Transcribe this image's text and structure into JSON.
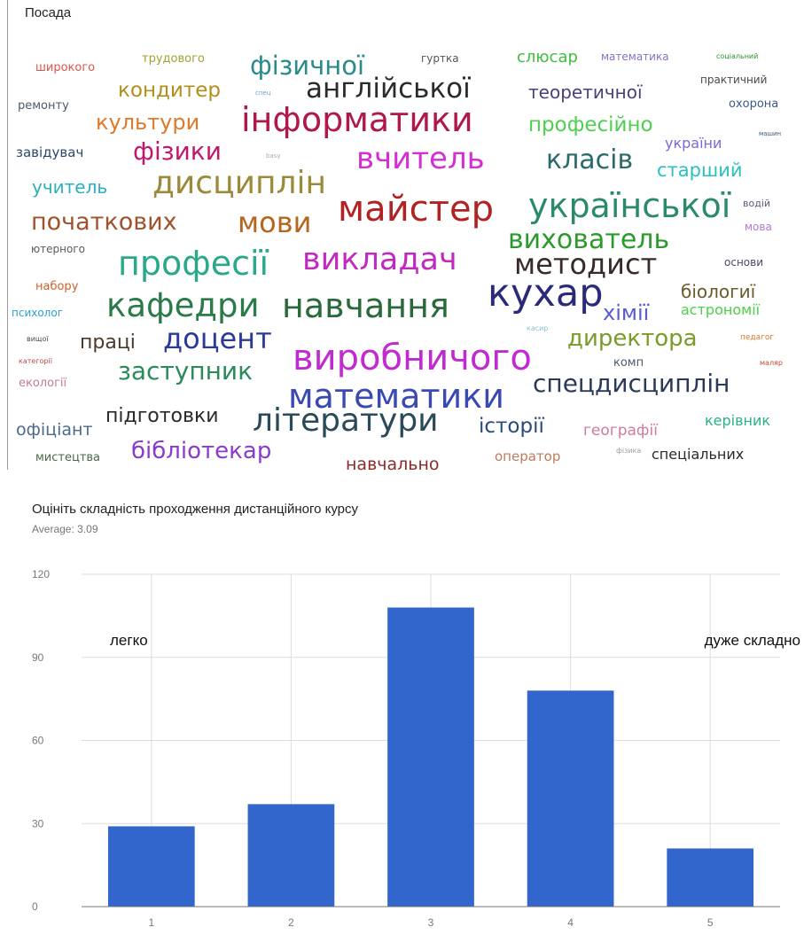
{
  "wordcloud": {
    "title": "Посада",
    "words": [
      {
        "text": "широкого",
        "color": "#d9564a"
      },
      {
        "text": "трудового",
        "color": "#a3a130"
      },
      {
        "text": "фізичної",
        "color": "#2b8a8a"
      },
      {
        "text": "гуртка",
        "color": "#555555"
      },
      {
        "text": "слюсар",
        "color": "#3fbf3f"
      },
      {
        "text": "математика",
        "color": "#8a6fc2"
      },
      {
        "text": "соціальний",
        "color": "#2f8f2f"
      },
      {
        "text": "кондитер",
        "color": "#b38f1a"
      },
      {
        "text": "спец",
        "color": "#6aa0d8"
      },
      {
        "text": "англійської",
        "color": "#2b2b2b"
      },
      {
        "text": "теоретичної",
        "color": "#4a3f7a"
      },
      {
        "text": "практичний",
        "color": "#4a4a4a"
      },
      {
        "text": "ремонту",
        "color": "#4a5a6a"
      },
      {
        "text": "охорона",
        "color": "#3a5a8a"
      },
      {
        "text": "культури",
        "color": "#e07a2a"
      },
      {
        "text": "інформатики",
        "color": "#b0174a"
      },
      {
        "text": "професійно",
        "color": "#4fcf4f"
      },
      {
        "text": "завідувач",
        "color": "#2a4a6a"
      },
      {
        "text": "фізики",
        "color": "#c0186a"
      },
      {
        "text": "basy",
        "color": "#aaaaaa"
      },
      {
        "text": "вчитель",
        "color": "#d32fd3"
      },
      {
        "text": "класів",
        "color": "#2a6a6a"
      },
      {
        "text": "україни",
        "color": "#7a6adf"
      },
      {
        "text": "машин",
        "color": "#3a5a7a"
      },
      {
        "text": "старший",
        "color": "#2ac0c0"
      },
      {
        "text": "учитель",
        "color": "#2ab0c0"
      },
      {
        "text": "дисциплін",
        "color": "#9a8a3a"
      },
      {
        "text": "водій",
        "color": "#5a5a7a"
      },
      {
        "text": "мова",
        "color": "#b07ad0"
      },
      {
        "text": "початкових",
        "color": "#a0522d"
      },
      {
        "text": "мови",
        "color": "#b5651d"
      },
      {
        "text": "майстер",
        "color": "#b22222"
      },
      {
        "text": "української",
        "color": "#2a8a6a"
      },
      {
        "text": "вихователь",
        "color": "#2a9a2a"
      },
      {
        "text": "ютерного",
        "color": "#5a5a5a"
      },
      {
        "text": "професії",
        "color": "#2aa88a"
      },
      {
        "text": "викладач",
        "color": "#c02ac0"
      },
      {
        "text": "методист",
        "color": "#3a2a2a"
      },
      {
        "text": "основи",
        "color": "#4a4a6a"
      },
      {
        "text": "набору",
        "color": "#d0602a"
      },
      {
        "text": "біологиї",
        "color": "#6a5a2a"
      },
      {
        "text": "психолог",
        "color": "#2aa0d0"
      },
      {
        "text": "кафедри",
        "color": "#2a7a4a"
      },
      {
        "text": "навчання",
        "color": "#2a6a3a"
      },
      {
        "text": "кухар",
        "color": "#2a2a7a"
      },
      {
        "text": "хімії",
        "color": "#5a5ad0"
      },
      {
        "text": "астрономії",
        "color": "#4ad04a"
      },
      {
        "text": "вищої",
        "color": "#4a4a4a"
      },
      {
        "text": "праці",
        "color": "#4a3a2a"
      },
      {
        "text": "доцент",
        "color": "#2a3a9a"
      },
      {
        "text": "касир",
        "color": "#8ac0d0"
      },
      {
        "text": "директора",
        "color": "#7a9a2a"
      },
      {
        "text": "педагог",
        "color": "#e07a2a"
      },
      {
        "text": "категорії",
        "color": "#c04a4a"
      },
      {
        "text": "заступник",
        "color": "#2a8a5a"
      },
      {
        "text": "виробничого",
        "color": "#c02ad0"
      },
      {
        "text": "комп",
        "color": "#4a5a6a"
      },
      {
        "text": "екології",
        "color": "#c07a9a"
      },
      {
        "text": "маляр",
        "color": "#c04a2a"
      },
      {
        "text": "математики",
        "color": "#3a4ab0"
      },
      {
        "text": "спецдисциплін",
        "color": "#2a3a5a"
      },
      {
        "text": "підготовки",
        "color": "#2a2a2a"
      },
      {
        "text": "літератури",
        "color": "#2a4a5a"
      },
      {
        "text": "офіціант",
        "color": "#4a6a8a"
      },
      {
        "text": "історії",
        "color": "#2a4a7a"
      },
      {
        "text": "географії",
        "color": "#d07aa0"
      },
      {
        "text": "керівник",
        "color": "#2ab08a"
      },
      {
        "text": "мистецтва",
        "color": "#4a6a4a"
      },
      {
        "text": "бібліотекар",
        "color": "#8a3ad0"
      },
      {
        "text": "навчально",
        "color": "#8a2a2a"
      },
      {
        "text": "оператор",
        "color": "#c07a5a"
      },
      {
        "text": "фізика",
        "color": "#a0a0a0"
      },
      {
        "text": "спеціальних",
        "color": "#2a2a2a"
      }
    ]
  },
  "chart": {
    "title": "Оцініть складність проходження дистанційного курсу",
    "average_label": "Average:",
    "average_value": "3.09",
    "bar_color": "#3366cc",
    "gridline_color": "#dddddd",
    "annotation_left": "легко",
    "annotation_right": "дуже складно"
  },
  "chart_data": {
    "type": "bar",
    "title": "Оцініть складність проходження дистанційного курсу",
    "categories": [
      "1",
      "2",
      "3",
      "4",
      "5"
    ],
    "values": [
      29,
      37,
      108,
      78,
      21
    ],
    "ylim": [
      0,
      120
    ],
    "yticks": [
      "0",
      "30",
      "60",
      "90",
      "120"
    ],
    "grid": true,
    "xlabel": "",
    "ylabel": ""
  }
}
